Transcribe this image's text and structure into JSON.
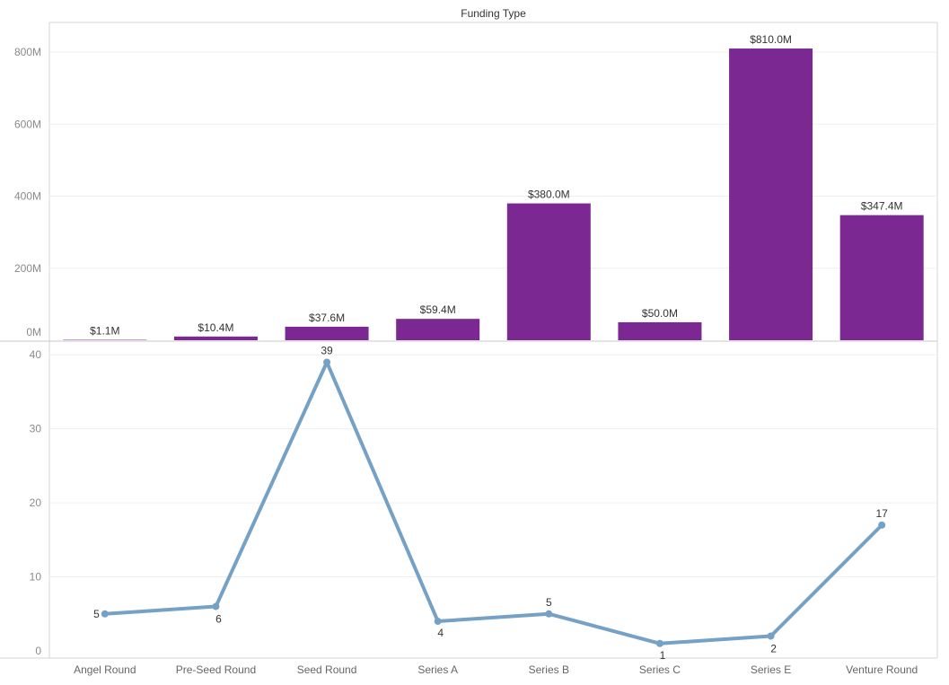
{
  "chart_data": [
    {
      "type": "bar",
      "title": "Funding Type",
      "categories": [
        "Angel Round",
        "Pre-Seed Round",
        "Seed Round",
        "Series A",
        "Series B",
        "Series C",
        "Series E",
        "Venture Round"
      ],
      "values": [
        1.1,
        10.4,
        37.6,
        59.4,
        380.0,
        50.0,
        810.0,
        347.4
      ],
      "value_unit": "M",
      "data_labels": [
        "$1.1M",
        "$10.4M",
        "$37.6M",
        "$59.4M",
        "$380.0M",
        "$50.0M",
        "$810.0M",
        "$347.4M"
      ],
      "ylim": [
        0,
        850
      ],
      "yticks": [
        0,
        200,
        400,
        600,
        800
      ],
      "ytick_labels": [
        "0M",
        "200M",
        "400M",
        "600M",
        "800M"
      ],
      "color": "#7b2892",
      "grid": true
    },
    {
      "type": "line",
      "categories": [
        "Angel Round",
        "Pre-Seed Round",
        "Seed Round",
        "Series A",
        "Series B",
        "Series C",
        "Series E",
        "Venture Round"
      ],
      "values": [
        5,
        6,
        39,
        4,
        5,
        1,
        2,
        17
      ],
      "data_labels": [
        "5",
        "6",
        "39",
        "4",
        "5",
        "1",
        "2",
        "17"
      ],
      "ylim": [
        0,
        41
      ],
      "yticks": [
        0,
        10,
        20,
        30,
        40
      ],
      "ytick_labels": [
        "0",
        "10",
        "20",
        "30",
        "40"
      ],
      "color": "#76a1c6",
      "grid": true
    }
  ]
}
